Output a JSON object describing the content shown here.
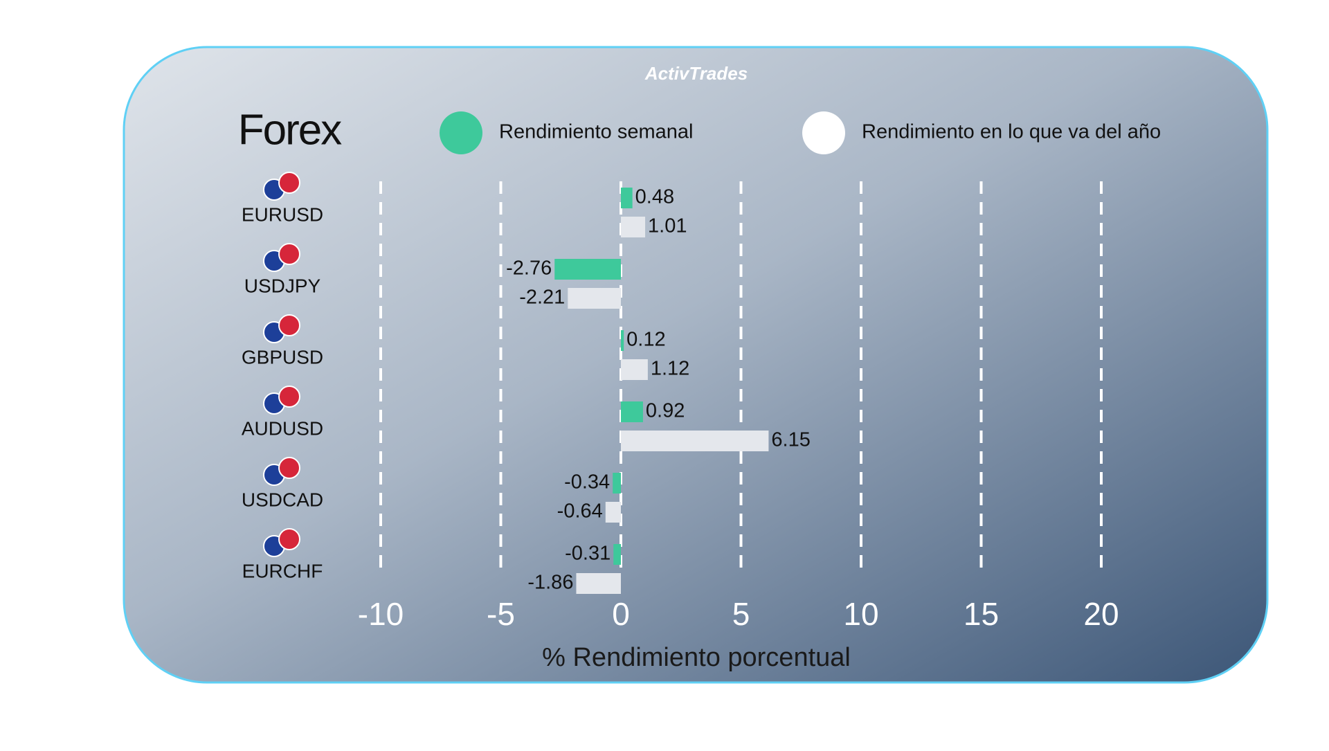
{
  "brand": "ActivTrades",
  "chart_data": {
    "type": "hbar",
    "title": "Forex",
    "categories": [
      "EURUSD",
      "USDJPY",
      "GBPUSD",
      "AUDUSD",
      "USDCAD",
      "EURCHF"
    ],
    "series": [
      {
        "name": "Rendimiento semanal",
        "color": "#3ec99b",
        "values": [
          0.48,
          -2.76,
          0.12,
          0.92,
          -0.34,
          -0.31
        ]
      },
      {
        "name": "Rendimiento en lo que va del año",
        "color": "#e4e7ec",
        "values": [
          1.01,
          -2.21,
          1.12,
          6.15,
          -0.64,
          -1.86
        ]
      }
    ],
    "xlim": [
      -10,
      20
    ],
    "xticks": [
      -10,
      -5,
      0,
      5,
      10,
      15,
      20
    ],
    "xlabel": "% Rendimiento porcentual",
    "grid": true
  }
}
